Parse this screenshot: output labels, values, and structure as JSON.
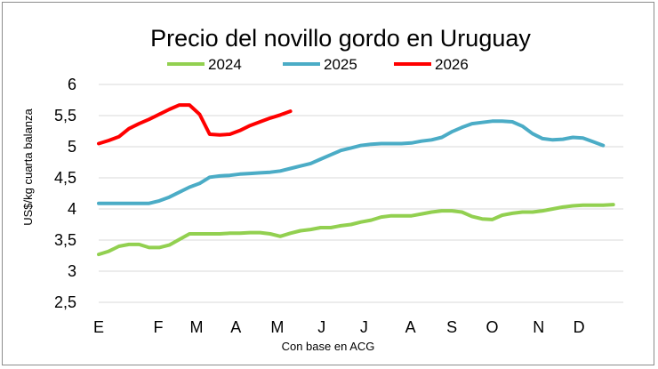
{
  "chart_data": {
    "type": "line",
    "title": "Precio del novillo gordo en Uruguay",
    "ylabel": "US$/kg cuarta balanza",
    "xlabel": "Con base en ACG",
    "ylim": [
      2.5,
      6
    ],
    "yticks": [
      "6",
      "5,5",
      "5",
      "4,5",
      "4",
      "3,5",
      "3",
      "2,5"
    ],
    "ytick_values": [
      6,
      5.5,
      5,
      4.5,
      4,
      3.5,
      3,
      2.5
    ],
    "xlim": [
      0,
      52
    ],
    "month_labels": [
      "E",
      "F",
      "M",
      "A",
      "M",
      "J",
      "J",
      "A",
      "S",
      "O",
      "N",
      "D"
    ],
    "month_weeks": [
      0,
      5.9,
      9.7,
      13.6,
      17.7,
      22.1,
      26.3,
      30.9,
      35,
      39,
      43.6,
      47.6
    ],
    "grid": true,
    "legend_position": "top",
    "series": [
      {
        "name": "2024",
        "color": "#92d050",
        "x": [
          0,
          1,
          2,
          3,
          4,
          5,
          6,
          7,
          8,
          9,
          10,
          11,
          12,
          13,
          14,
          15,
          16,
          17,
          18,
          19,
          20,
          21,
          22,
          23,
          24,
          25,
          26,
          27,
          28,
          29,
          30,
          31,
          32,
          33,
          34,
          35,
          36,
          37,
          38,
          39,
          40,
          41,
          42,
          43,
          44,
          45,
          46,
          47,
          48,
          49,
          50,
          51
        ],
        "values": [
          3.27,
          3.32,
          3.4,
          3.43,
          3.43,
          3.38,
          3.38,
          3.42,
          3.51,
          3.6,
          3.6,
          3.6,
          3.6,
          3.61,
          3.61,
          3.62,
          3.62,
          3.6,
          3.56,
          3.61,
          3.65,
          3.67,
          3.7,
          3.7,
          3.73,
          3.75,
          3.79,
          3.82,
          3.87,
          3.89,
          3.89,
          3.89,
          3.92,
          3.95,
          3.97,
          3.97,
          3.95,
          3.88,
          3.84,
          3.83,
          3.9,
          3.93,
          3.95,
          3.95,
          3.97,
          4.0,
          4.03,
          4.05,
          4.06,
          4.06,
          4.06,
          4.07
        ]
      },
      {
        "name": "2025",
        "color": "#4bacc6",
        "x": [
          0,
          1,
          2,
          3,
          4,
          5,
          6,
          7,
          8,
          9,
          10,
          11,
          12,
          13,
          14,
          15,
          16,
          17,
          18,
          19,
          20,
          21,
          22,
          23,
          24,
          25,
          26,
          27,
          28,
          29,
          30,
          31,
          32,
          33,
          34,
          35,
          36,
          37,
          38,
          39,
          40,
          41,
          42,
          43,
          44,
          45,
          46,
          47,
          48,
          49,
          50
        ],
        "values": [
          4.09,
          4.09,
          4.09,
          4.09,
          4.09,
          4.09,
          4.13,
          4.19,
          4.27,
          4.35,
          4.41,
          4.51,
          4.53,
          4.54,
          4.56,
          4.57,
          4.58,
          4.59,
          4.61,
          4.65,
          4.69,
          4.73,
          4.8,
          4.87,
          4.94,
          4.98,
          5.02,
          5.04,
          5.05,
          5.05,
          5.05,
          5.06,
          5.09,
          5.11,
          5.15,
          5.24,
          5.31,
          5.37,
          5.39,
          5.41,
          5.41,
          5.4,
          5.33,
          5.21,
          5.13,
          5.11,
          5.12,
          5.15,
          5.14,
          5.08,
          5.02
        ]
      },
      {
        "name": "2026",
        "color": "#ff0000",
        "x": [
          0,
          1,
          2,
          3,
          4,
          5,
          6,
          7,
          8,
          9,
          10,
          11,
          12,
          13,
          14,
          15,
          16,
          17,
          18,
          19
        ],
        "values": [
          5.05,
          5.1,
          5.16,
          5.29,
          5.37,
          5.44,
          5.52,
          5.6,
          5.67,
          5.67,
          5.52,
          5.2,
          5.19,
          5.2,
          5.26,
          5.34,
          5.4,
          5.46,
          5.51,
          5.57
        ]
      }
    ]
  }
}
